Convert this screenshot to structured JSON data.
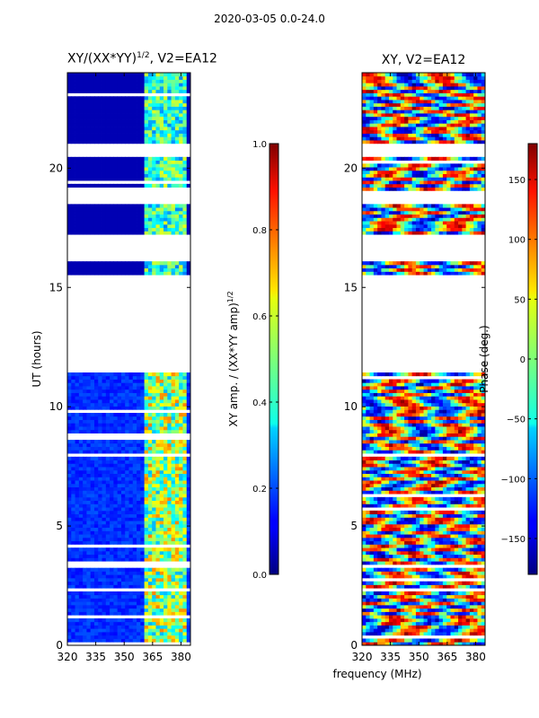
{
  "suptitle": "2020-03-05 0.0-24.0",
  "xlabel_shared": "frequency (MHz)",
  "chart_data": [
    {
      "type": "heatmap",
      "title_main": "XY/(XX*YY)",
      "title_sup": "1/2",
      "title_tail": ", V2=EA12",
      "ylabel": "UT (hours)",
      "xlim": [
        320,
        385
      ],
      "ylim": [
        0,
        24
      ],
      "xticks": [
        320,
        335,
        350,
        365,
        380
      ],
      "yticks": [
        0,
        5,
        10,
        15,
        20
      ],
      "colorbar": {
        "label_main": "XY amp. / (XX*YY amp)",
        "label_sup": "1/2",
        "range": [
          0.0,
          1.0
        ],
        "ticks": [
          "0.0",
          "0.2",
          "0.4",
          "0.6",
          "0.8",
          "1.0"
        ],
        "tick_values": [
          0.0,
          0.2,
          0.4,
          0.6,
          0.8,
          1.0
        ],
        "colormap": "jet"
      },
      "data_bands_hours": [
        [
          0,
          11.5
        ],
        [
          15.6,
          16.1
        ],
        [
          17.2,
          18.5
        ],
        [
          19.0,
          20.4
        ],
        [
          21.0,
          24.0
        ]
      ],
      "bright_region_MHz": [
        361,
        382
      ]
    },
    {
      "type": "heatmap",
      "title_main": "XY, V2=EA12",
      "ylabel": "",
      "xlim": [
        320,
        385
      ],
      "ylim": [
        0,
        24
      ],
      "xticks": [
        320,
        335,
        350,
        365,
        380
      ],
      "yticks": [
        0,
        5,
        10,
        15,
        20
      ],
      "colorbar": {
        "label_main": "Phase (deg.)",
        "range": [
          -180,
          180
        ],
        "ticks": [
          "−150",
          "−100",
          "−50",
          "0",
          "50",
          "100",
          "150"
        ],
        "tick_values": [
          -150,
          -100,
          -50,
          0,
          50,
          100,
          150
        ],
        "colormap": "jet"
      },
      "data_bands_hours": [
        [
          0,
          11.5
        ],
        [
          15.6,
          16.1
        ],
        [
          17.2,
          18.5
        ],
        [
          19.0,
          20.4
        ],
        [
          21.0,
          24.0
        ]
      ]
    }
  ]
}
